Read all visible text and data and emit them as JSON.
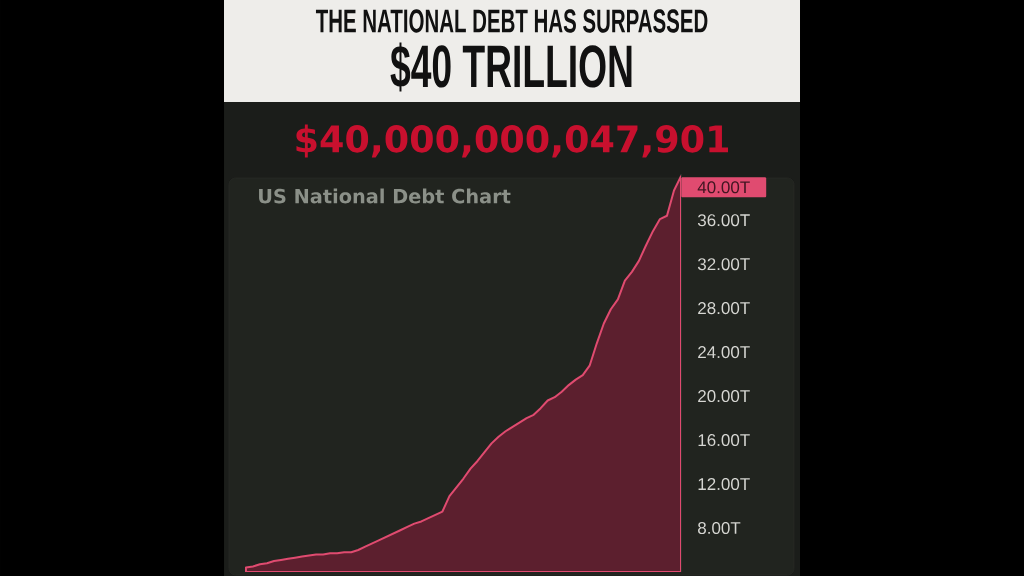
{
  "chart_data": {
    "type": "area",
    "title": "THE NATIONAL DEBT HAS SURPASSED",
    "subtitle": "$40 TRILLION",
    "annotations": [
      "$40,000,000,047,901",
      "US National Debt Chart",
      "40.00T"
    ],
    "categories": [
      null,
      null,
      null,
      null,
      null,
      null,
      null,
      null,
      null,
      null,
      null,
      null,
      null,
      null,
      null,
      null,
      null,
      null,
      null,
      null,
      null,
      null,
      null,
      null,
      null,
      null,
      null,
      null,
      null,
      null,
      null,
      null,
      null,
      null,
      null,
      null,
      null,
      null,
      null,
      null,
      null,
      null,
      null,
      null,
      null,
      null,
      null,
      null,
      null,
      null,
      null,
      null,
      null,
      null,
      null,
      null,
      null,
      null,
      null,
      null,
      null,
      null,
      null
    ],
    "values": [
      4.4,
      4.5,
      4.7,
      4.8,
      5.0,
      5.1,
      5.2,
      5.3,
      5.4,
      5.5,
      5.6,
      5.6,
      5.7,
      5.7,
      5.8,
      5.8,
      6.0,
      6.3,
      6.6,
      6.9,
      7.2,
      7.5,
      7.8,
      8.1,
      8.4,
      8.6,
      8.9,
      9.2,
      9.5,
      10.9,
      11.7,
      12.5,
      13.4,
      14.1,
      14.9,
      15.7,
      16.3,
      16.8,
      17.2,
      17.6,
      18.0,
      18.3,
      18.9,
      19.6,
      19.9,
      20.4,
      21.0,
      21.5,
      21.9,
      22.8,
      24.8,
      26.6,
      27.9,
      28.8,
      30.5,
      31.3,
      32.3,
      33.7,
      35.0,
      36.1,
      36.4,
      38.7,
      40.0
    ],
    "color": "#5c1f2e",
    "line_style": "solid",
    "ylim": [
      4,
      40.2
    ],
    "yticks": [
      {
        "value": 8,
        "label": "8.00T"
      },
      {
        "value": 12,
        "label": "12.00T"
      },
      {
        "value": 16,
        "label": "16.00T"
      },
      {
        "value": 20,
        "label": "20.00T"
      },
      {
        "value": 24,
        "label": "24.00T"
      },
      {
        "value": 28,
        "label": "28.00T"
      },
      {
        "value": 32,
        "label": "32.00T"
      },
      {
        "value": 36,
        "label": "36.00T"
      }
    ]
  }
}
